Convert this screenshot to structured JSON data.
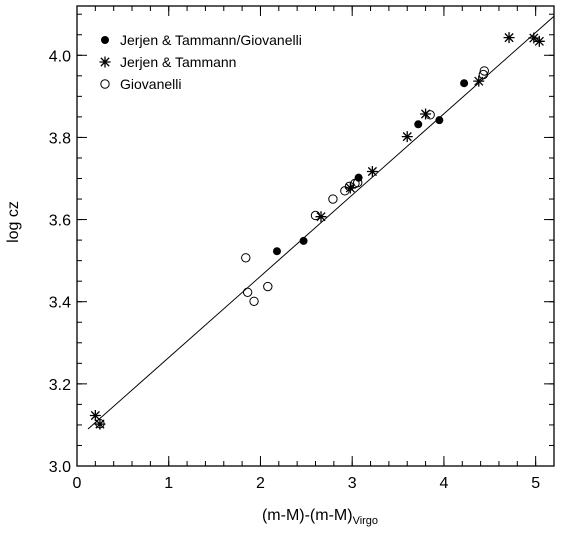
{
  "chart_data": {
    "type": "scatter",
    "xlabel_main": "(m-M)-(m-M)",
    "xlabel_sub": "Virgo",
    "ylabel": "log cz",
    "xlim": [
      0,
      5.2
    ],
    "ylim": [
      3.0,
      4.12
    ],
    "xticks": [
      {
        "value": 0,
        "label": "0"
      },
      {
        "value": 1,
        "label": "1"
      },
      {
        "value": 2,
        "label": "2"
      },
      {
        "value": 3,
        "label": "3"
      },
      {
        "value": 4,
        "label": "4"
      },
      {
        "value": 5,
        "label": "5"
      }
    ],
    "yticks": [
      {
        "value": 3.0,
        "label": "3.0"
      },
      {
        "value": 3.2,
        "label": "3.2"
      },
      {
        "value": 3.4,
        "label": "3.4"
      },
      {
        "value": 3.6,
        "label": "3.6"
      },
      {
        "value": 3.8,
        "label": "3.8"
      },
      {
        "value": 4.0,
        "label": "4.0"
      }
    ],
    "x_minor_step": 0.2,
    "y_minor_step": 0.05,
    "legend_position": "top-left",
    "series": [
      {
        "name": "Jerjen & Tammann/Giovanelli",
        "marker": "filled-circle",
        "points": [
          [
            2.18,
            3.523
          ],
          [
            2.47,
            3.548
          ],
          [
            3.07,
            3.702
          ],
          [
            3.72,
            3.832
          ],
          [
            3.95,
            3.842
          ],
          [
            4.22,
            3.932
          ]
        ]
      },
      {
        "name": "Jerjen & Tammann",
        "marker": "asterisk",
        "points": [
          [
            0.2,
            3.123
          ],
          [
            0.25,
            3.102
          ],
          [
            2.66,
            3.607
          ],
          [
            2.98,
            3.677
          ],
          [
            3.22,
            3.717
          ],
          [
            3.6,
            3.802
          ],
          [
            3.8,
            3.857
          ],
          [
            4.38,
            3.937
          ],
          [
            4.71,
            4.043
          ],
          [
            4.98,
            4.042
          ],
          [
            5.04,
            4.034
          ]
        ]
      },
      {
        "name": "Giovanelli",
        "marker": "open-circle",
        "points": [
          [
            0.25,
            3.103
          ],
          [
            1.84,
            3.507
          ],
          [
            1.86,
            3.423
          ],
          [
            1.93,
            3.401
          ],
          [
            2.08,
            3.437
          ],
          [
            2.6,
            3.61
          ],
          [
            2.79,
            3.65
          ],
          [
            2.92,
            3.67
          ],
          [
            2.97,
            3.681
          ],
          [
            3.03,
            3.688
          ],
          [
            3.06,
            3.69
          ],
          [
            3.85,
            3.855
          ],
          [
            4.43,
            3.953
          ],
          [
            4.44,
            3.962
          ]
        ]
      }
    ],
    "fit_line": {
      "x": [
        0.12,
        5.2
      ],
      "y": [
        3.09,
        4.095
      ]
    }
  }
}
